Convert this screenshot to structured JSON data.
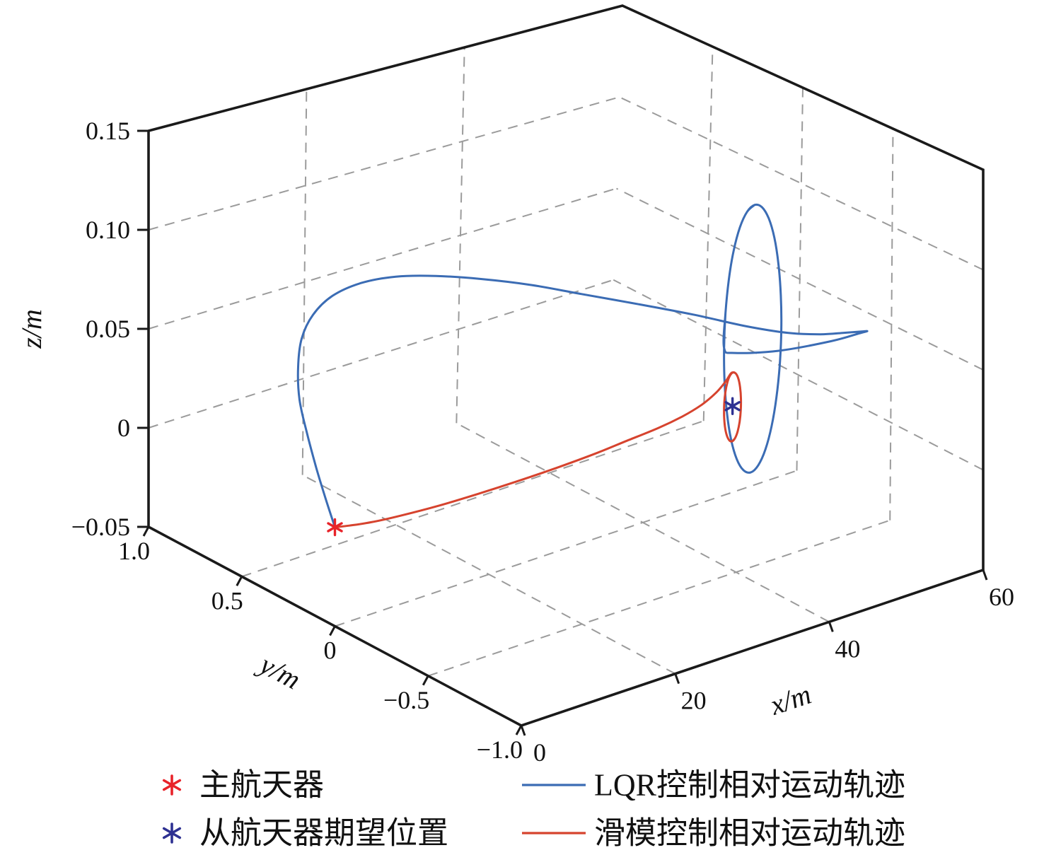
{
  "figure": {
    "background": "#ffffff",
    "box_color": "#1a1a1a",
    "grid_color": "#9b9b9b"
  },
  "chart_data": {
    "type": "line",
    "subtype": "3d-trajectory",
    "title": "",
    "grid": {
      "show": true,
      "style": "dashed"
    },
    "legend_position": "bottom",
    "axes": {
      "x": {
        "label": "x/m",
        "range": [
          0,
          60
        ],
        "ticks": [
          {
            "v": 0,
            "label": "0"
          },
          {
            "v": 20,
            "label": "20"
          },
          {
            "v": 40,
            "label": "40"
          },
          {
            "v": 60,
            "label": "60"
          }
        ]
      },
      "y": {
        "label": "y/m",
        "range": [
          -1,
          1
        ],
        "ticks": [
          {
            "v": 1,
            "label": "1.0"
          },
          {
            "v": 0.5,
            "label": "0.5"
          },
          {
            "v": 0,
            "label": "0"
          },
          {
            "v": -0.5,
            "label": "−0.5"
          },
          {
            "v": -1,
            "label": "−1.0"
          }
        ]
      },
      "z": {
        "label": "z/m",
        "range": [
          -0.05,
          0.15
        ],
        "ticks": [
          {
            "v": 0.15,
            "label": "0.15"
          },
          {
            "v": 0.1,
            "label": "0.10"
          },
          {
            "v": 0.05,
            "label": "0.05"
          },
          {
            "v": 0,
            "label": "0"
          },
          {
            "v": -0.05,
            "label": "−0.05"
          }
        ]
      }
    },
    "markers": [
      {
        "id": "chief-spacecraft",
        "label": "主航天器",
        "color": "#e8232a",
        "symbol": "asterisk",
        "position": [
          0,
          0,
          0
        ]
      },
      {
        "id": "deputy-desired-position",
        "label": "从航天器期望位置",
        "color": "#2e3192",
        "symbol": "asterisk",
        "position": [
          51.5,
          0,
          -0.005
        ]
      }
    ],
    "series": [
      {
        "id": "lqr",
        "name": "LQR控制相对运动轨迹",
        "color": "#3b6cb4",
        "points": [
          [
            0,
            0,
            0
          ],
          [
            0,
            0.05,
            0.012
          ],
          [
            0,
            0.1,
            0.025
          ],
          [
            0,
            0.15,
            0.04
          ],
          [
            0,
            0.19,
            0.055
          ],
          [
            0.3,
            0.21,
            0.07
          ],
          [
            1,
            0.22,
            0.083
          ],
          [
            2.2,
            0.21,
            0.094
          ],
          [
            4,
            0.18,
            0.103
          ],
          [
            6.5,
            0.13,
            0.109
          ],
          [
            9.5,
            0.07,
            0.1115
          ],
          [
            13,
            0,
            0.111
          ],
          [
            17,
            -0.07,
            0.108
          ],
          [
            22,
            -0.14,
            0.102
          ],
          [
            27,
            -0.2,
            0.094
          ],
          [
            33,
            -0.26,
            0.084
          ],
          [
            39,
            -0.3,
            0.073
          ],
          [
            45,
            -0.335,
            0.061
          ],
          [
            50,
            -0.355,
            0.052
          ],
          [
            54,
            -0.365,
            0.0465
          ],
          [
            57,
            -0.368,
            0.0435
          ],
          [
            59.2,
            -0.372,
            0.0415
          ],
          [
            59.9,
            -0.373,
            0.0408
          ],
          [
            59.3,
            -0.36,
            0.04
          ],
          [
            57,
            -0.3,
            0.036
          ],
          [
            53,
            -0.18,
            0.0305
          ],
          [
            50,
            -0.07,
            0.028
          ],
          [
            50.3,
            0,
            0.0268
          ],
          [
            50.43,
            0,
            0.0448
          ],
          [
            50.8,
            0,
            0.0616
          ],
          [
            51.38,
            0,
            0.076
          ],
          [
            52.15,
            0,
            0.0871
          ],
          [
            53.04,
            0,
            0.094
          ],
          [
            54,
            0,
            0.0964
          ],
          [
            54.96,
            0,
            0.094
          ],
          [
            55.85,
            0,
            0.0871
          ],
          [
            56.62,
            0,
            0.076
          ],
          [
            57.2,
            0,
            0.0616
          ],
          [
            57.57,
            0,
            0.0448
          ],
          [
            57.7,
            0,
            0.0268
          ],
          [
            57.57,
            0,
            0.0088
          ],
          [
            57.2,
            0,
            -0.008
          ],
          [
            56.62,
            0,
            -0.0224
          ],
          [
            55.85,
            0,
            -0.0335
          ],
          [
            54.96,
            0,
            -0.0404
          ],
          [
            54,
            0,
            -0.0428
          ],
          [
            53.04,
            0,
            -0.0404
          ],
          [
            52.15,
            0,
            -0.0335
          ],
          [
            51.38,
            0,
            -0.0224
          ],
          [
            50.8,
            0,
            -0.008
          ],
          [
            50.43,
            0,
            0.0088
          ],
          [
            50.3,
            0,
            0.0268
          ],
          [
            50.43,
            0,
            0.0448
          ],
          [
            50.8,
            0,
            0.0616
          ],
          [
            51.38,
            0,
            0.076
          ],
          [
            52.15,
            0,
            0.0871
          ],
          [
            53.04,
            0,
            0.094
          ],
          [
            54,
            0,
            0.0964
          ]
        ]
      },
      {
        "id": "smc",
        "name": "滑模控制相对运动轨迹",
        "color": "#d6432e",
        "points": [
          [
            0,
            0,
            0
          ],
          [
            2,
            0.005,
            -0.002
          ],
          [
            5,
            0.012,
            -0.0045
          ],
          [
            9,
            0.017,
            -0.0065
          ],
          [
            14,
            0.019,
            -0.008
          ],
          [
            19,
            0.018,
            -0.0085
          ],
          [
            24,
            0.016,
            -0.0085
          ],
          [
            29,
            0.013,
            -0.008
          ],
          [
            34,
            0.01,
            -0.007
          ],
          [
            38,
            0.007,
            -0.0055
          ],
          [
            42,
            0.004,
            -0.004
          ],
          [
            45,
            0.002,
            -0.002
          ],
          [
            47.5,
            0,
            0.001
          ],
          [
            49.3,
            -0.002,
            0.005
          ],
          [
            50.5,
            -0.001,
            0.009
          ],
          [
            51.2,
            0,
            0.0122
          ],
          [
            51.5,
            0,
            0.0125
          ],
          [
            51.88,
            0,
            0.0114
          ],
          [
            52.21,
            0,
            0.0083
          ],
          [
            52.45,
            0,
            0.0036
          ],
          [
            52.58,
            0,
            -0.0023
          ],
          [
            52.58,
            0,
            -0.0085
          ],
          [
            52.45,
            0,
            -0.0144
          ],
          [
            52.21,
            0,
            -0.0191
          ],
          [
            51.88,
            0,
            -0.0222
          ],
          [
            51.5,
            0,
            -0.0233
          ],
          [
            51.12,
            0,
            -0.0222
          ],
          [
            50.79,
            0,
            -0.0191
          ],
          [
            50.55,
            0,
            -0.0144
          ],
          [
            50.42,
            0,
            -0.0085
          ],
          [
            50.42,
            0,
            -0.0023
          ],
          [
            50.55,
            0,
            0.0036
          ],
          [
            50.79,
            0,
            0.0083
          ],
          [
            51.12,
            0,
            0.0114
          ],
          [
            51.5,
            0,
            0.0125
          ],
          [
            51.88,
            0,
            0.0114
          ],
          [
            52.21,
            0,
            0.0083
          ],
          [
            52.45,
            0,
            0.0036
          ],
          [
            52.58,
            0,
            -0.0023
          ],
          [
            52.58,
            0,
            -0.0085
          ],
          [
            52.45,
            0,
            -0.0144
          ],
          [
            52.21,
            0,
            -0.0191
          ],
          [
            51.88,
            0,
            -0.0222
          ],
          [
            51.5,
            0,
            -0.0233
          ]
        ]
      }
    ]
  }
}
